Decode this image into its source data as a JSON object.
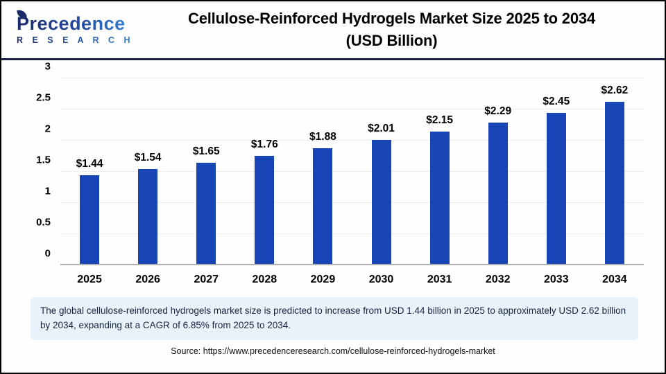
{
  "header": {
    "logo_brand": "Precedence",
    "logo_sub": "R E S E A R C H",
    "title_line1": "Cellulose-Reinforced Hydrogels Market Size 2025 to 2034",
    "title_line2": "(USD Billion)"
  },
  "chart_data": {
    "type": "bar",
    "title": "Cellulose-Reinforced Hydrogels Market Size 2025 to 2034 (USD Billion)",
    "categories": [
      "2025",
      "2026",
      "2027",
      "2028",
      "2029",
      "2030",
      "2031",
      "2032",
      "2033",
      "2034"
    ],
    "values": [
      1.44,
      1.54,
      1.65,
      1.76,
      1.88,
      2.01,
      2.15,
      2.29,
      2.45,
      2.62
    ],
    "value_labels": [
      "$1.44",
      "$1.54",
      "$1.65",
      "$1.76",
      "$1.88",
      "$2.01",
      "$2.15",
      "$2.29",
      "$2.45",
      "$2.62"
    ],
    "xlabel": "",
    "ylabel": "",
    "ylim": [
      0,
      3
    ],
    "yticks": [
      0,
      0.5,
      1,
      1.5,
      2,
      2.5,
      3
    ],
    "ytick_labels": [
      "0",
      "0.5",
      "1",
      "1.5",
      "2",
      "2.5",
      "3"
    ],
    "grid": true,
    "legend": "none",
    "bar_color": "#1745b5"
  },
  "summary": {
    "text": "The global cellulose-reinforced hydrogels market size is predicted to increase from USD 1.44 billion in 2025 to approximately USD 2.62 billion by 2034, expanding at a CAGR of 6.85% from 2025 to 2034."
  },
  "source": {
    "text": "Source: https://www.precedenceresearch.com/cellulose-reinforced-hydrogels-market"
  },
  "colors": {
    "bar": "#1745b5",
    "header_rule": "#1b2145",
    "summary_bg": "#e9f1fb",
    "gridline": "#ededed",
    "axis_baseline": "#b0b0b3",
    "logo_navy": "#1b2a6b",
    "logo_blue": "#2f7fd6"
  }
}
